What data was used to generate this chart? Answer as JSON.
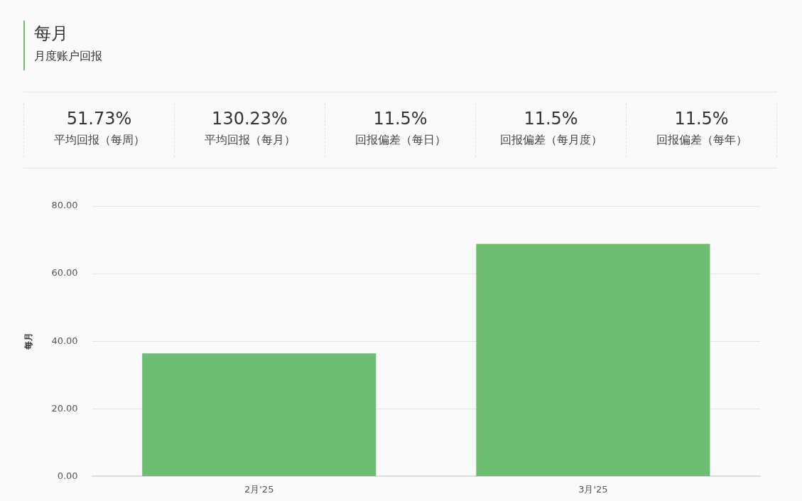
{
  "chart_data": [
    {
      "type": "other",
      "title": "每月",
      "subtitle": "月度账户回报",
      "annotations": [
        "51.73%",
        "平均回报（每周）",
        "130.23%",
        "平均回报（每月）",
        "11.5%",
        "回报偏差（每日）",
        "11.5%",
        "回报偏差（每月度）",
        "11.5%",
        "回报偏差（每年）"
      ]
    },
    {
      "type": "bar",
      "ylabel": "每月",
      "categories": [
        "2月'25",
        "3月'25"
      ],
      "values": [
        36.4,
        68.8
      ],
      "color": "#6dbe72",
      "ylim": [
        0,
        80
      ],
      "yticks": [
        {
          "value": 0,
          "label": "0.00"
        },
        {
          "value": 20,
          "label": "20.00"
        },
        {
          "value": 40,
          "label": "40.00"
        },
        {
          "value": 60,
          "label": "60.00"
        },
        {
          "value": 80,
          "label": "80.00"
        }
      ],
      "grid": "y",
      "legend": false
    }
  ]
}
